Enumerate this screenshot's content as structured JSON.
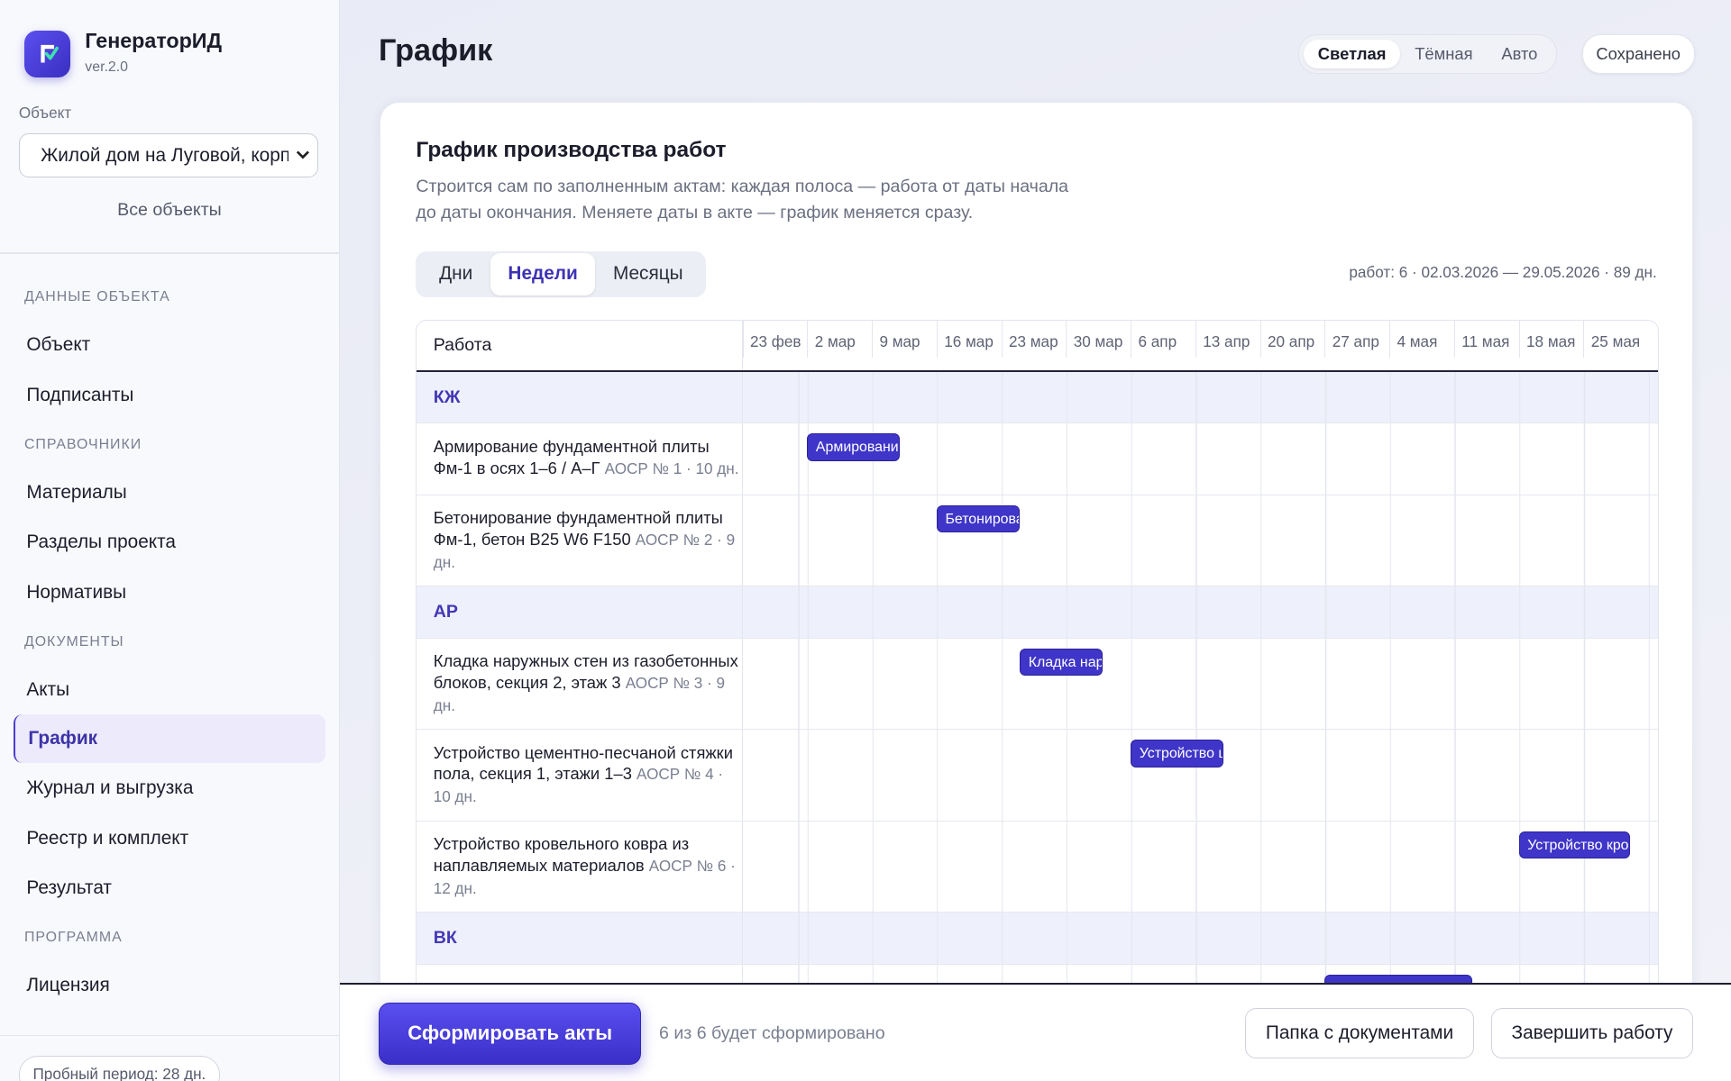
{
  "sidebar": {
    "app_name": "ГенераторИД",
    "version": "ver.2.0",
    "object_label": "Объект",
    "object_select": "Жилой дом на Луговой, корп",
    "all_objects": "Все объекты",
    "sections": [
      {
        "title": "ДАННЫЕ ОБЪЕКТА",
        "items": [
          {
            "label": "Объект"
          },
          {
            "label": "Подписанты"
          }
        ]
      },
      {
        "title": "СПРАВОЧНИКИ",
        "items": [
          {
            "label": "Материалы"
          },
          {
            "label": "Разделы проекта"
          },
          {
            "label": "Нормативы"
          }
        ]
      },
      {
        "title": "ДОКУМЕНТЫ",
        "items": [
          {
            "label": "Акты"
          },
          {
            "label": "График",
            "active": true
          },
          {
            "label": "Журнал и выгрузка"
          },
          {
            "label": "Реестр и комплект"
          },
          {
            "label": "Результат"
          }
        ]
      },
      {
        "title": "ПРОГРАММА",
        "items": [
          {
            "label": "Лицензия"
          }
        ]
      }
    ],
    "trial": "Пробный период: 28 дн."
  },
  "header": {
    "title": "График",
    "theme_options": [
      {
        "label": "Светлая",
        "active": true
      },
      {
        "label": "Тёмная"
      },
      {
        "label": "Авто"
      }
    ],
    "save_status": "Сохранено"
  },
  "card": {
    "title": "График производства работ",
    "description_lines": [
      "Строится сам по заполненным актам: каждая полоса — работа от даты начала",
      "до даты окончания. Меняете даты в акте — график меняется сразу."
    ],
    "scale_options": [
      {
        "label": "Дни"
      },
      {
        "label": "Недели",
        "active": true
      },
      {
        "label": "Месяцы"
      }
    ],
    "summary": "работ: 6 · 02.03.2026 — 29.05.2026 · 89 дн.",
    "column_header": "Работа",
    "timeline_start": "2026-02-23",
    "weeks": [
      "23 фев",
      "2 мар",
      "9 мар",
      "16 мар",
      "23 мар",
      "30 мар",
      "6 апр",
      "13 апр",
      "20 апр",
      "27 апр",
      "4 мая",
      "11 мая",
      "18 мая",
      "25 мая"
    ],
    "groups": [
      {
        "name": "КЖ",
        "rows": [
          {
            "title": "Армирование фундаментной плиты Фм-1 в осях 1–6 / А–Г",
            "meta": "АОСР № 1 · 10 дн.",
            "start": "2026-03-02",
            "duration_days": 10
          },
          {
            "title": "Бетонирование фундаментной плиты Фм-1, бетон B25 W6 F150",
            "meta": "АОСР № 2 · 9 дн.",
            "start": "2026-03-16",
            "duration_days": 9
          }
        ]
      },
      {
        "name": "АР",
        "rows": [
          {
            "title": "Кладка наружных стен из газобетонных блоков, секция 2, этаж 3",
            "meta": "АОСР № 3 · 9 дн.",
            "start": "2026-03-25",
            "duration_days": 9
          },
          {
            "title": "Устройство цементно-песчаной стяжки пола, секция 1, этажи 1–3",
            "meta": "АОСР № 4 · 10 дн.",
            "start": "2026-04-06",
            "duration_days": 10
          },
          {
            "title": "Устройство кровельного ковра из наплавляемых материалов",
            "meta": "АОСР № 6 · 12 дн.",
            "start": "2026-05-18",
            "duration_days": 12
          }
        ]
      },
      {
        "name": "ВК",
        "rows": [
          {
            "start": "2026-04-27",
            "duration_days": 16
          }
        ]
      }
    ]
  },
  "footer": {
    "primary_button": "Сформировать акты",
    "status": "6 из 6 будет сформировано",
    "buttons": [
      "Папка с документами",
      "Завершить работу"
    ]
  }
}
